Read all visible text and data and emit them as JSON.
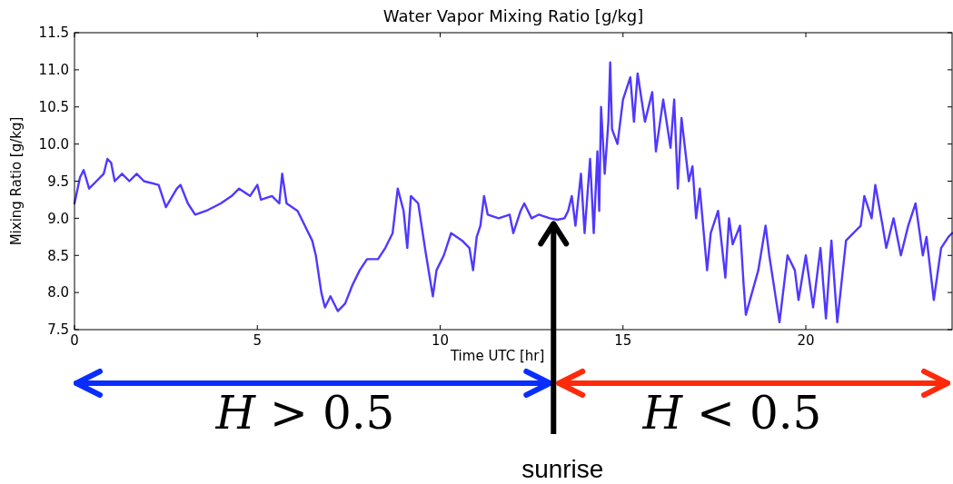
{
  "chart_data": {
    "type": "line",
    "title": "Water Vapor Mixing Ratio [g/kg]",
    "xlabel": "Time UTC [hr]",
    "ylabel": "Mixing Ratio [g/kg]",
    "xlim": [
      0,
      24
    ],
    "xticks": [
      0,
      5,
      10,
      15,
      20
    ],
    "ylim": [
      7.5,
      11.5
    ],
    "yticks": [
      7.5,
      {
        "value": 8,
        "label": "8.0"
      },
      8.5,
      {
        "value": 9,
        "label": "9.0"
      },
      9.5,
      {
        "value": 10,
        "label": "10.0"
      },
      10.5,
      {
        "value": 11,
        "label": "11.0"
      },
      11.5
    ],
    "grid": false,
    "marker": "none",
    "line_style": "solid",
    "annotations": [
      "H > 0.5",
      "H < 0.5"
    ],
    "ref_lines": [
      {
        "axis": "x",
        "value": 13.1,
        "label": "sunrise",
        "color": "#000000"
      }
    ],
    "series": [
      {
        "color": "#5038ff",
        "x": [
          0,
          0.15,
          0.25,
          0.4,
          0.6,
          0.8,
          0.9,
          1.0,
          1.1,
          1.3,
          1.5,
          1.7,
          1.9,
          2.3,
          2.5,
          2.8,
          2.9,
          3.1,
          3.3,
          3.6,
          4.0,
          4.3,
          4.5,
          4.8,
          5.0,
          5.1,
          5.4,
          5.6,
          5.68,
          5.8,
          6.1,
          6.3,
          6.5,
          6.6,
          6.75,
          6.85,
          7.0,
          7.2,
          7.4,
          7.6,
          7.8,
          8.0,
          8.3,
          8.5,
          8.7,
          8.84,
          9.0,
          9.1,
          9.2,
          9.4,
          9.6,
          9.75,
          9.8,
          9.9,
          10.1,
          10.3,
          10.6,
          10.8,
          10.9,
          11.0,
          11.1,
          11.2,
          11.3,
          11.6,
          11.9,
          12.0,
          12.2,
          12.3,
          12.5,
          12.7,
          13.0,
          13.2,
          13.4,
          13.5,
          13.6,
          13.7,
          13.85,
          13.95,
          14.1,
          14.2,
          14.3,
          14.35,
          14.4,
          14.5,
          14.6,
          14.65,
          14.7,
          14.85,
          15.0,
          15.2,
          15.3,
          15.4,
          15.6,
          15.8,
          15.9,
          16.1,
          16.3,
          16.4,
          16.5,
          16.6,
          16.8,
          16.9,
          17.0,
          17.1,
          17.3,
          17.4,
          17.6,
          17.8,
          17.9,
          18.0,
          18.2,
          18.3,
          18.36,
          18.7,
          18.9,
          19.0,
          19.28,
          19.5,
          19.7,
          19.8,
          20.0,
          20.2,
          20.4,
          20.55,
          20.7,
          20.86,
          21.1,
          21.5,
          21.6,
          21.8,
          21.9,
          22.1,
          22.2,
          22.4,
          22.6,
          22.8,
          23.0,
          23.2,
          23.3,
          23.5,
          23.7,
          23.9,
          24.0
        ],
        "values": [
          9.2,
          9.55,
          9.65,
          9.4,
          9.5,
          9.6,
          9.8,
          9.75,
          9.5,
          9.6,
          9.5,
          9.6,
          9.5,
          9.45,
          9.15,
          9.4,
          9.45,
          9.2,
          9.05,
          9.1,
          9.2,
          9.3,
          9.4,
          9.3,
          9.45,
          9.25,
          9.3,
          9.2,
          9.6,
          9.2,
          9.1,
          8.9,
          8.7,
          8.5,
          8.0,
          7.8,
          7.95,
          7.75,
          7.85,
          8.1,
          8.3,
          8.45,
          8.45,
          8.6,
          8.8,
          9.4,
          9.1,
          8.6,
          9.3,
          9.2,
          8.55,
          8.1,
          7.95,
          8.3,
          8.5,
          8.8,
          8.7,
          8.6,
          8.3,
          8.75,
          8.9,
          9.3,
          9.05,
          9.0,
          9.05,
          8.8,
          9.1,
          9.2,
          9.0,
          9.05,
          9.0,
          8.98,
          9.0,
          9.1,
          9.3,
          8.9,
          9.6,
          8.8,
          9.8,
          8.8,
          9.9,
          9.1,
          10.5,
          9.6,
          10.3,
          11.1,
          10.2,
          10.0,
          10.6,
          10.9,
          10.3,
          10.95,
          10.3,
          10.7,
          9.9,
          10.6,
          9.95,
          10.6,
          9.4,
          10.35,
          9.5,
          9.7,
          9.0,
          9.4,
          8.3,
          8.8,
          9.1,
          8.2,
          9.0,
          8.65,
          8.9,
          8.1,
          7.7,
          8.3,
          8.9,
          8.5,
          7.6,
          8.5,
          8.3,
          7.9,
          8.5,
          7.8,
          8.6,
          7.65,
          8.7,
          7.6,
          8.7,
          8.9,
          9.3,
          9.0,
          9.45,
          8.9,
          8.6,
          9.0,
          8.5,
          8.9,
          9.2,
          8.5,
          8.75,
          7.9,
          8.6,
          8.75,
          8.8
        ]
      }
    ]
  }
}
